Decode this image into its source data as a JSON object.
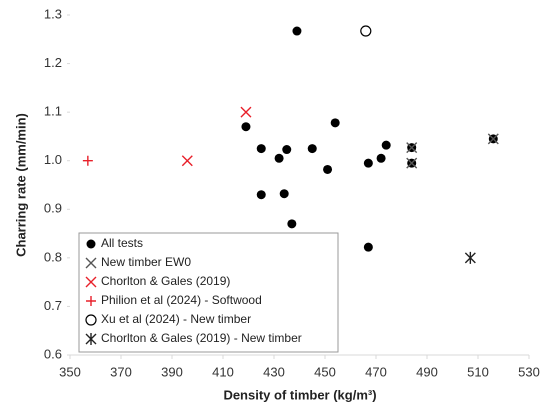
{
  "chart_data": {
    "type": "scatter",
    "x_label": "Density of timber (kg/m³)",
    "y_label": "Charring rate (mm/min)",
    "xlim": [
      350,
      530
    ],
    "xticks": [
      350,
      370,
      390,
      410,
      430,
      450,
      470,
      490,
      510,
      530
    ],
    "ylim": [
      0.6,
      1.3
    ],
    "yticks": [
      {
        "value": 0.6,
        "label": "0.6"
      },
      {
        "value": 0.7,
        "label": "0.7"
      },
      {
        "value": 0.8,
        "label": "0.8"
      },
      {
        "value": 0.9,
        "label": "0.9"
      },
      {
        "value": 1.0,
        "label": "1.0"
      },
      {
        "value": 1.1,
        "label": "1.1"
      },
      {
        "value": 1.2,
        "label": "1.2"
      },
      {
        "value": 1.3,
        "label": "1.3"
      }
    ],
    "legend_position": "lower left",
    "series": [
      {
        "name": "All tests",
        "marker": "filled-circle",
        "color": "#000000",
        "x": [
          439,
          419,
          425,
          425,
          432,
          435,
          434,
          437,
          445,
          451,
          454,
          467,
          472,
          474,
          467,
          484,
          484,
          516
        ],
        "y": [
          1.267,
          1.07,
          1.025,
          0.93,
          1.005,
          1.023,
          0.932,
          0.87,
          1.025,
          0.982,
          1.078,
          0.995,
          1.005,
          1.032,
          0.822,
          1.027,
          0.995,
          1.045
        ]
      },
      {
        "name": "New timber EW0",
        "marker": "cross",
        "color": "#555555",
        "x": [
          484,
          484,
          516
        ],
        "y": [
          1.027,
          0.995,
          1.045
        ]
      },
      {
        "name": "Chorlton & Gales (2019)",
        "marker": "cross",
        "color": "#e8202a",
        "x": [
          419,
          396
        ],
        "y": [
          1.1,
          1.0
        ]
      },
      {
        "name": "Philion et al (2024) - Softwood",
        "marker": "plus",
        "color": "#e8202a",
        "x": [
          357
        ],
        "y": [
          1.0
        ]
      },
      {
        "name": "Xu et al (2024) - New timber",
        "marker": "open-circle",
        "color": "#000000",
        "x": [
          466
        ],
        "y": [
          1.267
        ]
      },
      {
        "name": "Chorlton & Gales (2019) - New timber",
        "marker": "asterisk",
        "color": "#222222",
        "x": [
          507
        ],
        "y": [
          0.8
        ]
      }
    ]
  }
}
